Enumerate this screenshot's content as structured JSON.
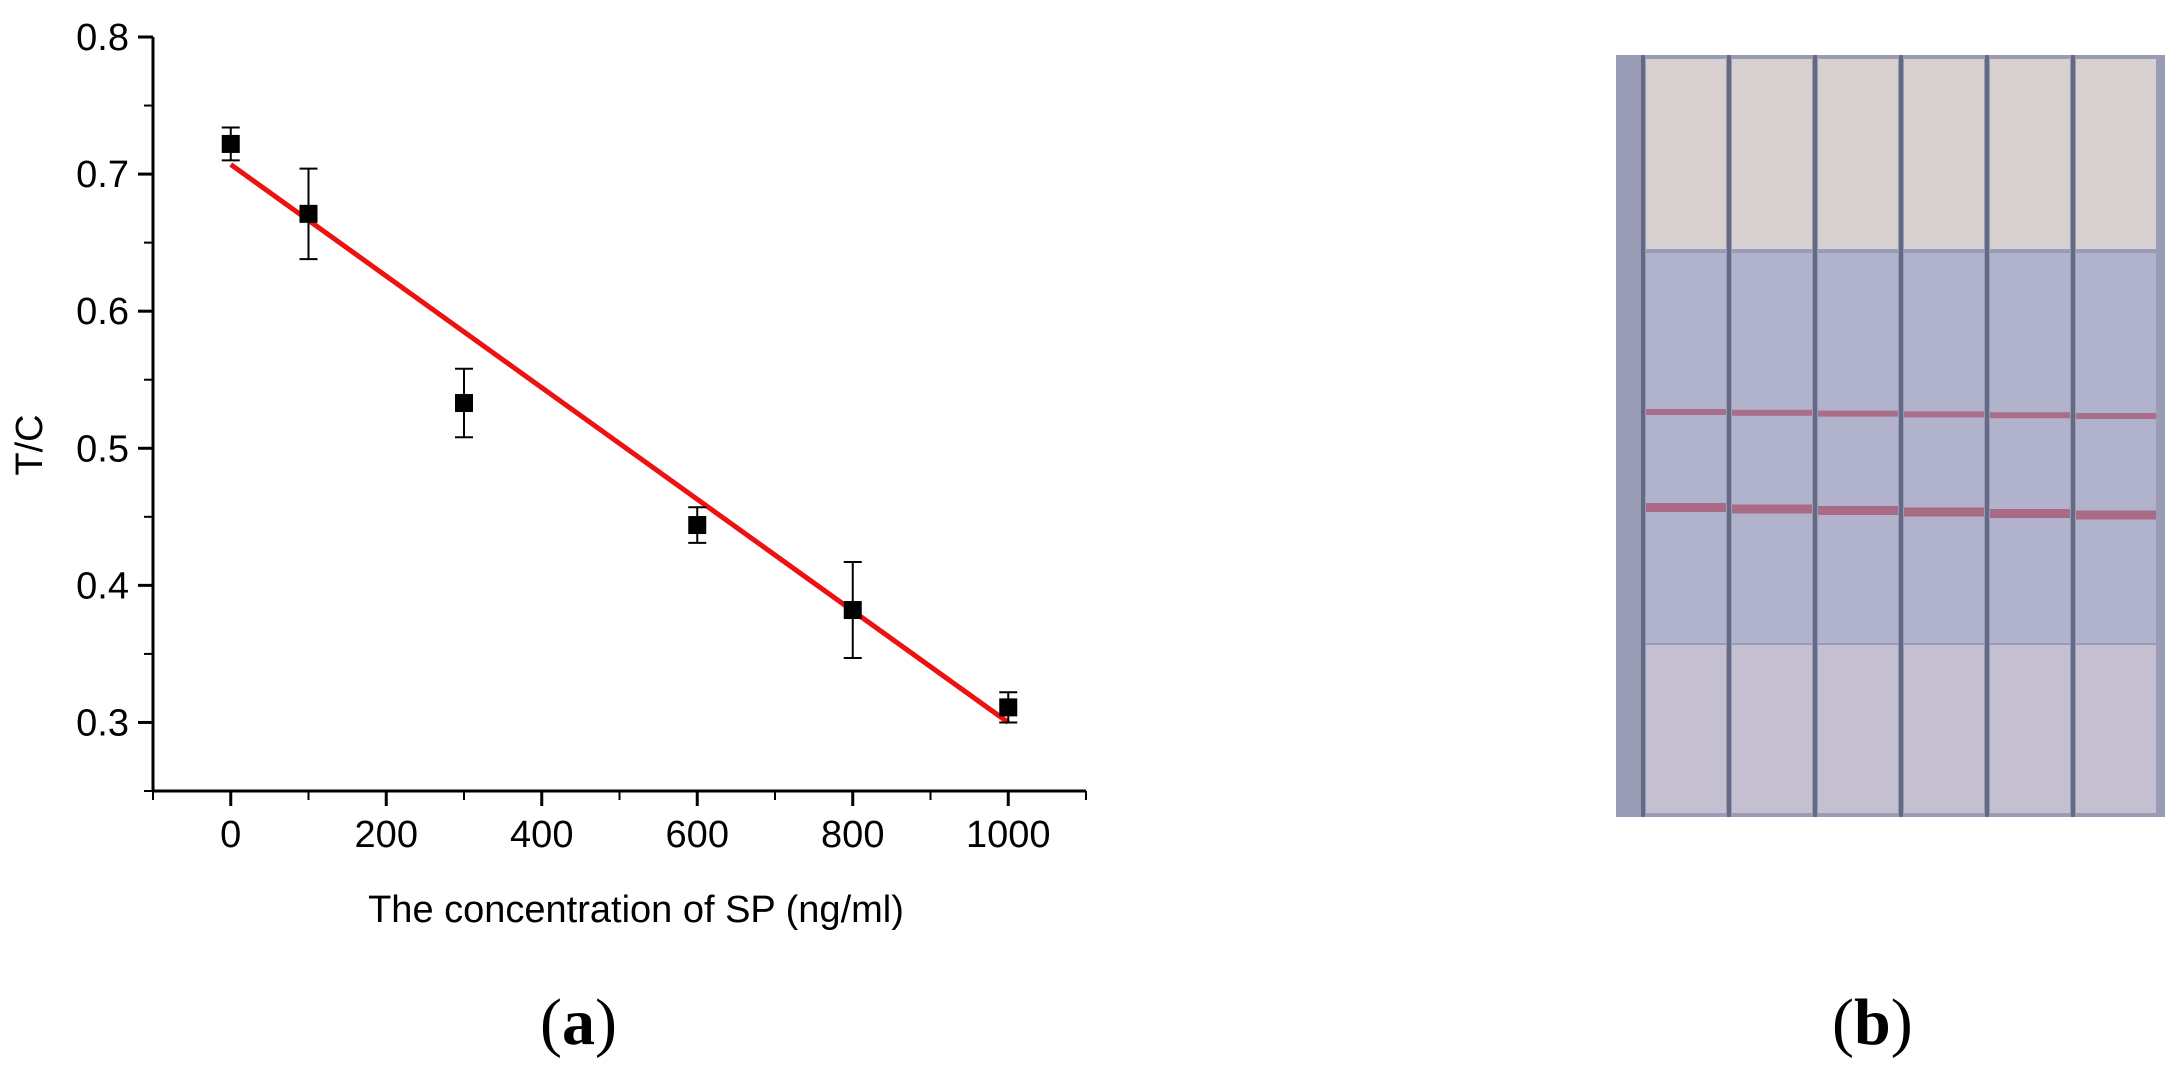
{
  "panels": {
    "a": {
      "letter": "a",
      "open": "(",
      "close": ")"
    },
    "b": {
      "letter": "b",
      "open": "(",
      "close": ")"
    }
  },
  "chart_data": {
    "type": "scatter",
    "title": "",
    "xlabel": "The concentration of SP (ng/ml)",
    "ylabel": "T/C",
    "xlim": [
      -100,
      1100
    ],
    "ylim": [
      0.25,
      0.8
    ],
    "xticks": [
      0,
      200,
      400,
      600,
      800,
      1000
    ],
    "yticks": [
      0.3,
      0.4,
      0.5,
      0.6,
      0.7,
      0.8
    ],
    "xtick_labels": [
      "0",
      "200",
      "400",
      "600",
      "800",
      "1000"
    ],
    "ytick_labels": [
      "0.3",
      "0.4",
      "0.5",
      "0.6",
      "0.7",
      "0.8"
    ],
    "grid": false,
    "legend": "none",
    "series": [
      {
        "points": [
          {
            "x": 0,
            "y": 0.722,
            "err": 0.012
          },
          {
            "x": 100,
            "y": 0.671,
            "err": 0.033
          },
          {
            "x": 300,
            "y": 0.533,
            "err": 0.025
          },
          {
            "x": 600,
            "y": 0.444,
            "err": 0.013
          },
          {
            "x": 800,
            "y": 0.382,
            "err": 0.035
          },
          {
            "x": 1000,
            "y": 0.311,
            "err": 0.011
          }
        ],
        "marker_color": "#000000"
      }
    ],
    "fit_line": {
      "x": [
        0,
        1000
      ],
      "y": [
        0.707,
        0.3
      ],
      "color": "#ee1111"
    }
  },
  "photo": {
    "strip_count": 6,
    "colors": {
      "frame": "#9a9cb5",
      "top": "#d8d0d0",
      "middle": "#b1b2cc",
      "bottom": "#c5bfd2",
      "band": "#a8627e",
      "divider": "#646a86"
    }
  }
}
